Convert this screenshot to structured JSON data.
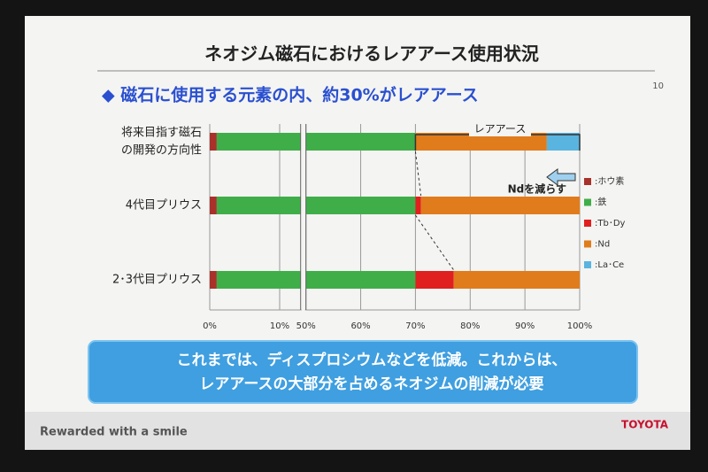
{
  "chart_data": {
    "type": "stacked-bar-horizontal",
    "title": "ネオジム磁石におけるレアアース使用状況",
    "subtitle": "◆ 磁石に使用する元素の内、約30%がレアアース",
    "page_number": "10",
    "categories": [
      [
        "将来目指す磁石",
        "の開発の方向性"
      ],
      [
        "4代目プリウス"
      ],
      [
        "2･3代目プリウス"
      ]
    ],
    "series": [
      {
        "name": ":ホウ素",
        "color": "#a8322a",
        "values": [
          1,
          1,
          1
        ]
      },
      {
        "name": ":鉄",
        "color": "#3fae49",
        "values": [
          69,
          69,
          69
        ]
      },
      {
        "name": ":Tb･Dy",
        "color": "#e0201e",
        "values": [
          0,
          1,
          7
        ]
      },
      {
        "name": ":Nd",
        "color": "#e07c1c",
        "values": [
          24,
          29,
          23
        ]
      },
      {
        "name": ":La･Ce",
        "color": "#5ab4e0",
        "values": [
          6,
          0,
          0
        ]
      }
    ],
    "xlim": [
      0,
      100
    ],
    "axis_break": [
      13,
      50
    ],
    "xticks": [
      {
        "value": 0,
        "label": "0%"
      },
      {
        "value": 10,
        "label": "10%"
      },
      {
        "value": 50,
        "label": "50%"
      },
      {
        "value": 60,
        "label": "60%"
      },
      {
        "value": 70,
        "label": "70%"
      },
      {
        "value": 80,
        "label": "80%"
      },
      {
        "value": 90,
        "label": "90%"
      },
      {
        "value": 100,
        "label": "100%"
      }
    ],
    "grid": true,
    "legend": "right",
    "annotations": [
      "レアアース",
      "Ndを減らす"
    ],
    "message": [
      "これまでは、ディスプロシウムなどを低減。これからは、",
      "レアアースの大部分を占めるネオジムの削減が必要"
    ],
    "footer": "Rewarded with a smile",
    "logo": "TOYOTA"
  }
}
